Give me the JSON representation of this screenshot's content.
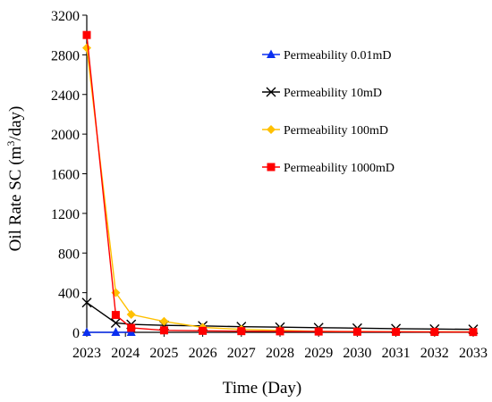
{
  "chart_data": {
    "type": "line",
    "xlabel": "Time (Day)",
    "ylabel": "Oil Rate SC (m³/day)",
    "ylabel_main": "Oil Rate SC (m",
    "ylabel_sup": "3",
    "ylabel_end": "/day)",
    "x_ticks": [
      "2023",
      "2024",
      "2025",
      "2026",
      "2027",
      "2028",
      "2029",
      "2030",
      "2031",
      "2032",
      "2033"
    ],
    "y_ticks": [
      "0",
      "400",
      "800",
      "1200",
      "1600",
      "2000",
      "2400",
      "2800",
      "3200"
    ],
    "xlim": [
      2023,
      2033
    ],
    "ylim": [
      0,
      3200
    ],
    "grid": false,
    "legend_position": "top-right",
    "series": [
      {
        "name": "Permeability 0.01mD",
        "color": "#0a2ff0",
        "marker": "triangle",
        "points": [
          [
            2023.0,
            0
          ],
          [
            2023.75,
            0
          ],
          [
            2024.15,
            0
          ]
        ]
      },
      {
        "name": "Permeability 10mD",
        "color": "#000000",
        "marker": "x",
        "points": [
          [
            2023.0,
            300
          ],
          [
            2023.75,
            95
          ],
          [
            2024.15,
            80
          ],
          [
            2025.0,
            70
          ],
          [
            2026.0,
            65
          ],
          [
            2027.0,
            57
          ],
          [
            2028.0,
            52
          ],
          [
            2029.0,
            47
          ],
          [
            2030.0,
            42
          ],
          [
            2031.0,
            37
          ],
          [
            2032.0,
            33
          ],
          [
            2033.0,
            30
          ]
        ]
      },
      {
        "name": "Permeability 100mD",
        "color": "#ffc000",
        "marker": "diamond",
        "points": [
          [
            2023.0,
            2870
          ],
          [
            2023.75,
            400
          ],
          [
            2024.15,
            180
          ],
          [
            2025.0,
            110
          ],
          [
            2026.0,
            50
          ],
          [
            2027.0,
            30
          ],
          [
            2028.0,
            20
          ],
          [
            2029.0,
            10
          ],
          [
            2030.0,
            8
          ],
          [
            2031.0,
            6
          ],
          [
            2032.0,
            5
          ],
          [
            2033.0,
            4
          ]
        ]
      },
      {
        "name": "Permeability 1000mD",
        "color": "#ff0000",
        "marker": "square",
        "points": [
          [
            2023.0,
            3000
          ],
          [
            2023.75,
            175
          ],
          [
            2024.15,
            45
          ],
          [
            2025.0,
            20
          ],
          [
            2026.0,
            15
          ],
          [
            2027.0,
            12
          ],
          [
            2028.0,
            10
          ],
          [
            2029.0,
            8
          ],
          [
            2030.0,
            6
          ],
          [
            2031.0,
            5
          ],
          [
            2032.0,
            4
          ],
          [
            2033.0,
            3
          ]
        ]
      }
    ]
  }
}
